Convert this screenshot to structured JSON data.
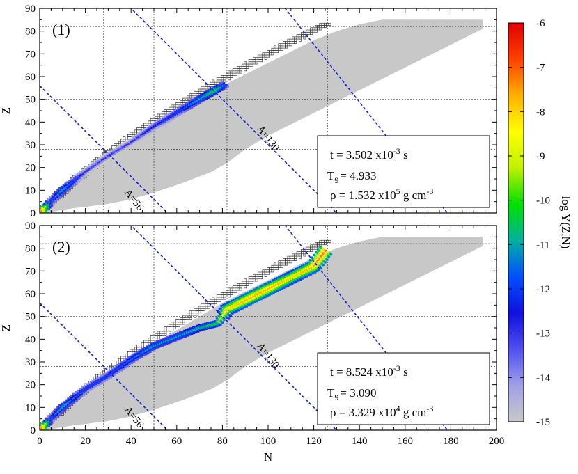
{
  "chart_data": {
    "type": "heatmap",
    "xlabel": "N",
    "ylabel": "Z",
    "colorbar_label": "log Y(Z,N)",
    "xlim": [
      0,
      200
    ],
    "ylim": [
      0,
      90
    ],
    "x_ticks": [
      "0",
      "20",
      "40",
      "60",
      "80",
      "100",
      "120",
      "140",
      "160",
      "180",
      "200"
    ],
    "y_ticks": [
      "0",
      "10",
      "20",
      "30",
      "40",
      "50",
      "60",
      "70",
      "80",
      "90"
    ],
    "colorbar": {
      "range": [
        -15,
        -6
      ],
      "ticks": [
        "-6",
        "-7",
        "-8",
        "-9",
        "-10",
        "-11",
        "-12",
        "-13",
        "-14",
        "-15"
      ],
      "colors": [
        "#c8c8c8",
        "#a0a0e8",
        "#5050f0",
        "#1010e0",
        "#0050ff",
        "#00b0a0",
        "#00e000",
        "#c0f000",
        "#ffff00",
        "#ffb000",
        "#ff4000",
        "#e00000"
      ]
    },
    "isobars": [
      {
        "label": "A=56",
        "A": 56
      },
      {
        "label": "A=130",
        "A": 130
      }
    ],
    "magic_numbers": {
      "N": [
        28,
        50,
        82,
        126
      ],
      "Z": [
        28,
        50,
        82
      ]
    },
    "panels": [
      {
        "label": "(1)",
        "t_label": "t  =  3.502 x10",
        "t_exp": "-3",
        "t_unit": " s",
        "T9_label": "T",
        "T9_sub": "9",
        "T9_value": "=  4.933",
        "rho_label": "ρ  =  1.532 x10",
        "rho_exp": "5",
        "rho_unit": " g cm",
        "rho_unit_exp": "-3",
        "path": [
          {
            "n": 0,
            "z": 0,
            "logY": -6.5
          },
          {
            "n": 5,
            "z": 5,
            "logY": -12
          },
          {
            "n": 10,
            "z": 10,
            "logY": -11
          },
          {
            "n": 15,
            "z": 14,
            "logY": -12
          },
          {
            "n": 20,
            "z": 18,
            "logY": -13
          },
          {
            "n": 30,
            "z": 25,
            "logY": -13
          },
          {
            "n": 40,
            "z": 31,
            "logY": -13
          },
          {
            "n": 50,
            "z": 38,
            "logY": -12.5
          },
          {
            "n": 60,
            "z": 44,
            "logY": -12
          },
          {
            "n": 70,
            "z": 50,
            "logY": -11
          },
          {
            "n": 77,
            "z": 54,
            "logY": -10
          },
          {
            "n": 82,
            "z": 57,
            "logY": -12
          }
        ]
      },
      {
        "label": "(2)",
        "t_label": "t  =  8.524 x10",
        "t_exp": "-3",
        "t_unit": " s",
        "T9_label": "T",
        "T9_sub": "9",
        "T9_value": "=  3.090",
        "rho_label": "ρ  =  3.329 x10",
        "rho_exp": "4",
        "rho_unit": " g cm",
        "rho_unit_exp": "-3",
        "path": [
          {
            "n": 0,
            "z": 0,
            "logY": -6.5
          },
          {
            "n": 5,
            "z": 5,
            "logY": -12
          },
          {
            "n": 10,
            "z": 10,
            "logY": -11
          },
          {
            "n": 20,
            "z": 18,
            "logY": -12
          },
          {
            "n": 30,
            "z": 24,
            "logY": -12
          },
          {
            "n": 40,
            "z": 31,
            "logY": -11.5
          },
          {
            "n": 50,
            "z": 37,
            "logY": -11
          },
          {
            "n": 60,
            "z": 41,
            "logY": -11
          },
          {
            "n": 70,
            "z": 45,
            "logY": -10.5
          },
          {
            "n": 78,
            "z": 47,
            "logY": -10
          },
          {
            "n": 82,
            "z": 53,
            "logY": -8
          },
          {
            "n": 90,
            "z": 57,
            "logY": -7.5
          },
          {
            "n": 100,
            "z": 62,
            "logY": -7.5
          },
          {
            "n": 110,
            "z": 67,
            "logY": -8
          },
          {
            "n": 120,
            "z": 72,
            "logY": -7.5
          },
          {
            "n": 126,
            "z": 80,
            "logY": -7
          }
        ]
      }
    ]
  }
}
